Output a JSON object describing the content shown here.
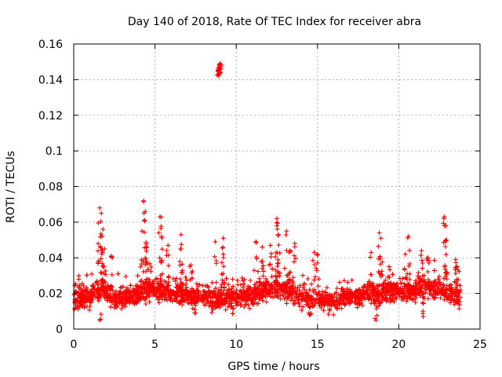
{
  "chart_data": {
    "type": "scatter",
    "title": "Day 140 of 2018, Rate Of TEC Index for receiver abra",
    "xlabel": "GPS time / hours",
    "ylabel": "ROTI / TECUs",
    "xlim": [
      0,
      25
    ],
    "ylim": [
      0,
      0.16
    ],
    "xticks": [
      0,
      5,
      10,
      15,
      20,
      25
    ],
    "xtick_labels": [
      "0",
      "5",
      "10",
      "15",
      "20",
      "25"
    ],
    "yticks": [
      0,
      0.02,
      0.04,
      0.06,
      0.08,
      0.1,
      0.12,
      0.14,
      0.16
    ],
    "ytick_labels": [
      "0",
      "0.02",
      "0.04",
      "0.06",
      "0.08",
      "0.1",
      "0.12",
      "0.14",
      "0.16"
    ],
    "grid": true,
    "marker": "+",
    "color": "#ff0000",
    "baseline_profile": [
      {
        "x": 0.0,
        "y": 0.017
      },
      {
        "x": 1.0,
        "y": 0.018
      },
      {
        "x": 1.7,
        "y": 0.024
      },
      {
        "x": 2.5,
        "y": 0.016
      },
      {
        "x": 3.5,
        "y": 0.019
      },
      {
        "x": 4.5,
        "y": 0.022
      },
      {
        "x": 5.5,
        "y": 0.022
      },
      {
        "x": 7.0,
        "y": 0.019
      },
      {
        "x": 9.0,
        "y": 0.017
      },
      {
        "x": 11.0,
        "y": 0.019
      },
      {
        "x": 12.5,
        "y": 0.024
      },
      {
        "x": 14.0,
        "y": 0.018
      },
      {
        "x": 16.0,
        "y": 0.016
      },
      {
        "x": 18.0,
        "y": 0.02
      },
      {
        "x": 20.0,
        "y": 0.021
      },
      {
        "x": 22.0,
        "y": 0.023
      },
      {
        "x": 23.8,
        "y": 0.018
      }
    ],
    "noise_amplitude": 0.0045,
    "hours_start": 0.0,
    "hours_end": 23.8,
    "samples_per_hour": 110,
    "peaks": [
      {
        "x": 1.6,
        "y": 0.068
      },
      {
        "x": 1.7,
        "y": 0.065
      },
      {
        "x": 1.8,
        "y": 0.056
      },
      {
        "x": 1.5,
        "y": 0.048
      },
      {
        "x": 1.9,
        "y": 0.045
      },
      {
        "x": 2.3,
        "y": 0.041
      },
      {
        "x": 4.3,
        "y": 0.072
      },
      {
        "x": 4.4,
        "y": 0.066
      },
      {
        "x": 4.2,
        "y": 0.055
      },
      {
        "x": 4.5,
        "y": 0.046
      },
      {
        "x": 4.4,
        "y": 0.04
      },
      {
        "x": 5.3,
        "y": 0.063
      },
      {
        "x": 5.4,
        "y": 0.052
      },
      {
        "x": 5.8,
        "y": 0.047
      },
      {
        "x": 6.6,
        "y": 0.053
      },
      {
        "x": 6.6,
        "y": 0.045
      },
      {
        "x": 7.2,
        "y": 0.036
      },
      {
        "x": 8.7,
        "y": 0.049
      },
      {
        "x": 9.2,
        "y": 0.051
      },
      {
        "x": 9.2,
        "y": 0.042
      },
      {
        "x": 8.95,
        "y": 0.147
      },
      {
        "x": 9.0,
        "y": 0.149
      },
      {
        "x": 8.9,
        "y": 0.145
      },
      {
        "x": 9.0,
        "y": 0.146
      },
      {
        "x": 8.95,
        "y": 0.148
      },
      {
        "x": 11.2,
        "y": 0.049
      },
      {
        "x": 11.6,
        "y": 0.046
      },
      {
        "x": 12.1,
        "y": 0.047
      },
      {
        "x": 12.5,
        "y": 0.062
      },
      {
        "x": 12.5,
        "y": 0.058
      },
      {
        "x": 12.6,
        "y": 0.053
      },
      {
        "x": 13.1,
        "y": 0.055
      },
      {
        "x": 13.3,
        "y": 0.044
      },
      {
        "x": 13.6,
        "y": 0.048
      },
      {
        "x": 14.8,
        "y": 0.043
      },
      {
        "x": 15.0,
        "y": 0.042
      },
      {
        "x": 18.3,
        "y": 0.043
      },
      {
        "x": 18.8,
        "y": 0.054
      },
      {
        "x": 18.9,
        "y": 0.051
      },
      {
        "x": 19.4,
        "y": 0.035
      },
      {
        "x": 20.6,
        "y": 0.052
      },
      {
        "x": 20.4,
        "y": 0.042
      },
      {
        "x": 21.4,
        "y": 0.044
      },
      {
        "x": 21.8,
        "y": 0.04
      },
      {
        "x": 22.8,
        "y": 0.063
      },
      {
        "x": 22.9,
        "y": 0.058
      },
      {
        "x": 22.9,
        "y": 0.05
      },
      {
        "x": 23.5,
        "y": 0.039
      },
      {
        "x": 23.6,
        "y": 0.035
      },
      {
        "x": 1.6,
        "y": 0.005
      },
      {
        "x": 7.5,
        "y": 0.009
      },
      {
        "x": 14.5,
        "y": 0.008
      },
      {
        "x": 18.6,
        "y": 0.005
      },
      {
        "x": 21.5,
        "y": 0.007
      }
    ]
  }
}
